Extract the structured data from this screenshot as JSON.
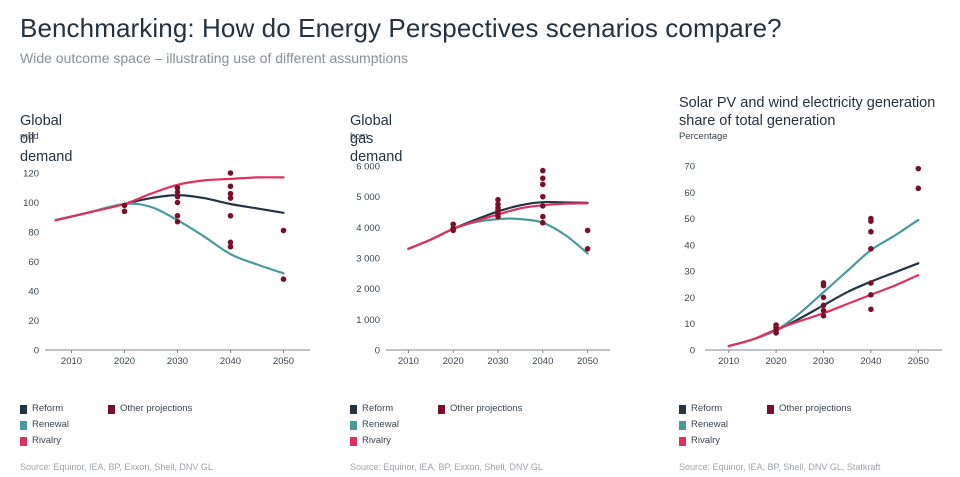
{
  "title": "Benchmarking: How do Energy Perspectives scenarios compare?",
  "subtitle": "Wide outcome space – illustrating use of different assumptions",
  "colors": {
    "reform": "#253346",
    "renewal": "#4a9a9c",
    "rivalry": "#e0315e",
    "other": "#7a0f2b",
    "axis": "#7f8790"
  },
  "legend": {
    "reform": "Reform",
    "renewal": "Renewal",
    "rivalry": "Rivalry",
    "other": "Other projections"
  },
  "panels": [
    {
      "title": "Global oil demand",
      "unit": "mbd",
      "source": "Source: Equinor, IEA, BP, Exxon, Shell, DNV GL"
    },
    {
      "title": "Global gas demand",
      "unit": "bcm",
      "source": "Source: Equinor, IEA, BP, Exxon, Shell, DNV GL"
    },
    {
      "title": "Solar PV and wind electricity generation share of total generation",
      "unit": "Percentage",
      "source": "Source: Equinor, IEA, BP, Shell, DNV GL, Statkraft"
    }
  ],
  "chart_data": [
    {
      "type": "line",
      "title": "Global oil demand",
      "ylabel": "mbd",
      "ylim": [
        0,
        120
      ],
      "yticks": [
        0,
        20,
        40,
        60,
        80,
        100,
        120
      ],
      "yticklabels": [
        "0",
        "20",
        "40",
        "60",
        "80",
        "100",
        "120"
      ],
      "xticks": [
        2010,
        2020,
        2030,
        2040,
        2050
      ],
      "xticklabels": [
        "2010",
        "2020",
        "2030",
        "2040",
        "2050"
      ],
      "xlim": [
        2005,
        2055
      ],
      "series": [
        {
          "name": "Reform",
          "x": [
            2007,
            2013,
            2020,
            2025,
            2030,
            2035,
            2040,
            2045,
            2050
          ],
          "values": [
            88,
            93,
            99,
            103,
            105,
            103,
            99,
            96,
            93
          ]
        },
        {
          "name": "Renewal",
          "x": [
            2007,
            2013,
            2020,
            2025,
            2030,
            2035,
            2040,
            2045,
            2050
          ],
          "values": [
            88,
            93,
            99,
            97,
            88,
            77,
            65,
            58,
            52
          ]
        },
        {
          "name": "Rivalry",
          "x": [
            2007,
            2013,
            2020,
            2025,
            2030,
            2035,
            2040,
            2045,
            2050
          ],
          "values": [
            88,
            93,
            99,
            106,
            112,
            115,
            116,
            117,
            117
          ]
        }
      ],
      "other_projections": [
        {
          "x": 2020,
          "y": 94
        },
        {
          "x": 2020,
          "y": 98
        },
        {
          "x": 2030,
          "y": 87
        },
        {
          "x": 2030,
          "y": 91
        },
        {
          "x": 2030,
          "y": 100
        },
        {
          "x": 2030,
          "y": 104
        },
        {
          "x": 2030,
          "y": 107
        },
        {
          "x": 2030,
          "y": 110
        },
        {
          "x": 2040,
          "y": 70
        },
        {
          "x": 2040,
          "y": 73
        },
        {
          "x": 2040,
          "y": 91
        },
        {
          "x": 2040,
          "y": 103
        },
        {
          "x": 2040,
          "y": 106
        },
        {
          "x": 2040,
          "y": 111
        },
        {
          "x": 2040,
          "y": 120
        },
        {
          "x": 2050,
          "y": 48
        },
        {
          "x": 2050,
          "y": 81
        }
      ]
    },
    {
      "type": "line",
      "title": "Global gas demand",
      "ylabel": "bcm",
      "ylim": [
        0,
        6000
      ],
      "yticks": [
        0,
        1000,
        2000,
        3000,
        4000,
        5000,
        6000
      ],
      "yticklabels": [
        "0",
        "1 000",
        "2 000",
        "3 000",
        "4 000",
        "5 000",
        "6 000"
      ],
      "xticks": [
        2010,
        2020,
        2030,
        2040,
        2050
      ],
      "xticklabels": [
        "2010",
        "2020",
        "2030",
        "2040",
        "2050"
      ],
      "xlim": [
        2005,
        2055
      ],
      "series": [
        {
          "name": "Reform",
          "x": [
            2010,
            2015,
            2020,
            2025,
            2030,
            2035,
            2040,
            2045,
            2050
          ],
          "values": [
            3300,
            3600,
            3950,
            4250,
            4520,
            4720,
            4820,
            4810,
            4800
          ]
        },
        {
          "name": "Renewal",
          "x": [
            2010,
            2015,
            2020,
            2025,
            2030,
            2035,
            2040,
            2045,
            2050
          ],
          "values": [
            3300,
            3600,
            3950,
            4170,
            4270,
            4270,
            4150,
            3750,
            3150
          ]
        },
        {
          "name": "Rivalry",
          "x": [
            2010,
            2015,
            2020,
            2025,
            2030,
            2035,
            2040,
            2045,
            2050
          ],
          "values": [
            3300,
            3600,
            3950,
            4200,
            4420,
            4620,
            4720,
            4770,
            4780
          ]
        }
      ],
      "other_projections": [
        {
          "x": 2020,
          "y": 3900
        },
        {
          "x": 2020,
          "y": 3970
        },
        {
          "x": 2020,
          "y": 4100
        },
        {
          "x": 2030,
          "y": 4350
        },
        {
          "x": 2030,
          "y": 4450
        },
        {
          "x": 2030,
          "y": 4560
        },
        {
          "x": 2030,
          "y": 4640
        },
        {
          "x": 2030,
          "y": 4750
        },
        {
          "x": 2030,
          "y": 4900
        },
        {
          "x": 2040,
          "y": 4150
        },
        {
          "x": 2040,
          "y": 4350
        },
        {
          "x": 2040,
          "y": 4700
        },
        {
          "x": 2040,
          "y": 5000
        },
        {
          "x": 2040,
          "y": 5400
        },
        {
          "x": 2040,
          "y": 5600
        },
        {
          "x": 2040,
          "y": 5850
        },
        {
          "x": 2050,
          "y": 3300
        },
        {
          "x": 2050,
          "y": 3900
        }
      ]
    },
    {
      "type": "line",
      "title": "Solar PV and wind electricity generation share of total generation",
      "ylabel": "Percentage",
      "ylim": [
        0,
        70
      ],
      "yticks": [
        0,
        10,
        20,
        30,
        40,
        50,
        60,
        70
      ],
      "yticklabels": [
        "0",
        "10",
        "20",
        "30",
        "40",
        "50",
        "60",
        "70"
      ],
      "xticks": [
        2010,
        2020,
        2030,
        2040,
        2050
      ],
      "xticklabels": [
        "2010",
        "2020",
        "2030",
        "2040",
        "2050"
      ],
      "xlim": [
        2005,
        2055
      ],
      "series": [
        {
          "name": "Reform",
          "x": [
            2010,
            2015,
            2020,
            2025,
            2030,
            2035,
            2040,
            2045,
            2050
          ],
          "values": [
            1.5,
            4,
            7.5,
            12,
            17,
            22,
            26,
            29.5,
            33
          ]
        },
        {
          "name": "Renewal",
          "x": [
            2010,
            2015,
            2020,
            2025,
            2030,
            2035,
            2040,
            2045,
            2050
          ],
          "values": [
            1.5,
            4,
            7.5,
            14,
            22,
            30,
            38,
            43.5,
            49.5
          ]
        },
        {
          "name": "Rivalry",
          "x": [
            2010,
            2015,
            2020,
            2025,
            2030,
            2035,
            2040,
            2045,
            2050
          ],
          "values": [
            1.5,
            4,
            7.8,
            11,
            14,
            17.5,
            21,
            24.5,
            28.5
          ]
        }
      ],
      "other_projections": [
        {
          "x": 2020,
          "y": 6.5
        },
        {
          "x": 2020,
          "y": 7.5
        },
        {
          "x": 2020,
          "y": 8.5
        },
        {
          "x": 2020,
          "y": 9.5
        },
        {
          "x": 2030,
          "y": 13
        },
        {
          "x": 2030,
          "y": 15
        },
        {
          "x": 2030,
          "y": 17
        },
        {
          "x": 2030,
          "y": 20
        },
        {
          "x": 2030,
          "y": 24.5
        },
        {
          "x": 2030,
          "y": 25.5
        },
        {
          "x": 2040,
          "y": 15.5
        },
        {
          "x": 2040,
          "y": 21
        },
        {
          "x": 2040,
          "y": 25.5
        },
        {
          "x": 2040,
          "y": 38.5
        },
        {
          "x": 2040,
          "y": 45
        },
        {
          "x": 2040,
          "y": 49
        },
        {
          "x": 2040,
          "y": 50
        },
        {
          "x": 2050,
          "y": 61.5
        },
        {
          "x": 2050,
          "y": 69
        }
      ]
    }
  ]
}
